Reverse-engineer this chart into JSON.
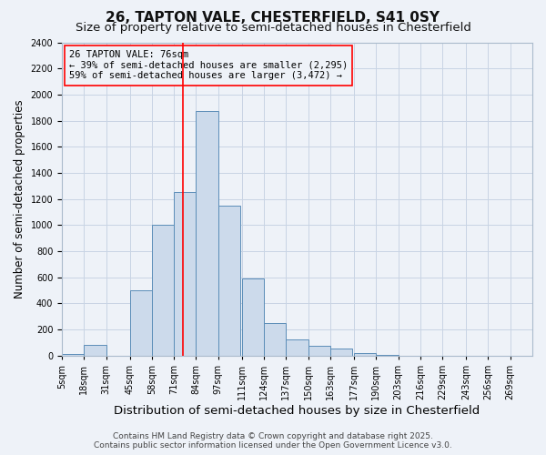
{
  "title": "26, TAPTON VALE, CHESTERFIELD, S41 0SY",
  "subtitle": "Size of property relative to semi-detached houses in Chesterfield",
  "xlabel": "Distribution of semi-detached houses by size in Chesterfield",
  "ylabel": "Number of semi-detached properties",
  "footer_line1": "Contains HM Land Registry data © Crown copyright and database right 2025.",
  "footer_line2": "Contains public sector information licensed under the Open Government Licence v3.0.",
  "annotation_title": "26 TAPTON VALE: 76sqm",
  "annotation_line1": "← 39% of semi-detached houses are smaller (2,295)",
  "annotation_line2": "59% of semi-detached houses are larger (3,472) →",
  "bar_labels": [
    "5sqm",
    "18sqm",
    "31sqm",
    "45sqm",
    "58sqm",
    "71sqm",
    "84sqm",
    "97sqm",
    "111sqm",
    "124sqm",
    "137sqm",
    "150sqm",
    "163sqm",
    "177sqm",
    "190sqm",
    "203sqm",
    "216sqm",
    "229sqm",
    "243sqm",
    "256sqm",
    "269sqm"
  ],
  "bar_left_edges": [
    5,
    18,
    31,
    45,
    58,
    71,
    84,
    97,
    111,
    124,
    137,
    150,
    163,
    177,
    190,
    203,
    216,
    229,
    243,
    256,
    269
  ],
  "bar_values": [
    10,
    80,
    0,
    500,
    1000,
    1250,
    1870,
    1150,
    590,
    245,
    120,
    75,
    50,
    15,
    5,
    0,
    0,
    0,
    0,
    0,
    0
  ],
  "bar_color": "#ccdaeb",
  "bar_edge_color": "#5b8db8",
  "grid_color": "#c8d4e4",
  "bg_color": "#eef2f8",
  "vline_x": 76,
  "vline_color": "red",
  "ylim": [
    0,
    2400
  ],
  "yticks": [
    0,
    200,
    400,
    600,
    800,
    1000,
    1200,
    1400,
    1600,
    1800,
    2000,
    2200,
    2400
  ],
  "title_fontsize": 11,
  "subtitle_fontsize": 9.5,
  "xlabel_fontsize": 9.5,
  "ylabel_fontsize": 8.5,
  "tick_fontsize": 7,
  "annotation_fontsize": 7.5,
  "footer_fontsize": 6.5
}
